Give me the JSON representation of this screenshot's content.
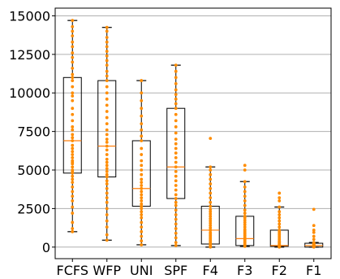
{
  "chart_data": {
    "type": "box",
    "title": "",
    "xlabel": "",
    "ylabel": "",
    "ylim": [
      -750,
      15500
    ],
    "yticks": [
      0,
      2500,
      5000,
      7500,
      10000,
      12500,
      15000
    ],
    "ytick_labels": [
      "0",
      "2500",
      "5000",
      "7500",
      "10000",
      "12500",
      "15000"
    ],
    "grid": "horizontal",
    "point_color": "#ff8c00",
    "median_color": "#ff7f0e",
    "categories": [
      "FCFS",
      "WFP",
      "UNI",
      "SPF",
      "F4",
      "F3",
      "F2",
      "F1"
    ],
    "boxes": [
      {
        "min": 1000,
        "q1": 4800,
        "median": 6900,
        "q3": 11000,
        "max": 14700,
        "points": [
          1000,
          1200,
          1600,
          2200,
          2600,
          3000,
          3300,
          3600,
          3900,
          4200,
          4400,
          4600,
          4800,
          4900,
          5000,
          5200,
          5400,
          5500,
          5600,
          5800,
          6000,
          6200,
          6400,
          6600,
          6900,
          7100,
          7300,
          7600,
          7800,
          8200,
          8600,
          9000,
          9500,
          9800,
          10000,
          10400,
          10800,
          11000,
          11200,
          11600,
          12000,
          12300,
          12600,
          13000,
          13300,
          13700,
          14000,
          14300,
          14700
        ]
      },
      {
        "min": 450,
        "q1": 4550,
        "median": 6550,
        "q3": 10800,
        "max": 14250,
        "points": [
          450,
          800,
          1300,
          1700,
          2100,
          2500,
          2900,
          3200,
          3500,
          3800,
          4100,
          4300,
          4550,
          4700,
          4900,
          5100,
          5300,
          5500,
          5700,
          6000,
          6300,
          6550,
          6800,
          7000,
          7300,
          7600,
          8000,
          8400,
          8800,
          9200,
          9600,
          10000,
          10400,
          10800,
          11100,
          11400,
          11800,
          12100,
          12400,
          12700,
          13000,
          13300,
          13600,
          14000,
          14250
        ]
      },
      {
        "min": 150,
        "q1": 2650,
        "median": 3800,
        "q3": 6900,
        "max": 10800,
        "points": [
          150,
          400,
          700,
          1000,
          1300,
          1600,
          1900,
          2100,
          2300,
          2500,
          2650,
          2800,
          3000,
          3200,
          3400,
          3600,
          3800,
          4000,
          4200,
          4400,
          4700,
          5000,
          5300,
          5600,
          6000,
          6400,
          6900,
          7200,
          7600,
          8000,
          8500,
          9000,
          9500,
          10000,
          10800
        ]
      },
      {
        "min": 100,
        "q1": 3150,
        "median": 5200,
        "q3": 9000,
        "max": 11800,
        "points": [
          100,
          300,
          600,
          900,
          1200,
          1500,
          1800,
          2100,
          2400,
          2700,
          2900,
          3150,
          3400,
          3700,
          4000,
          4300,
          4600,
          4900,
          5200,
          5500,
          5800,
          6100,
          6400,
          6700,
          7000,
          7400,
          7800,
          8200,
          8600,
          9000,
          9300,
          9600,
          9900,
          10200,
          10600,
          11000,
          11400,
          11800
        ]
      },
      {
        "min": 0,
        "q1": 200,
        "median": 1100,
        "q3": 2650,
        "max": 5200,
        "points": [
          0,
          50,
          150,
          250,
          350,
          450,
          550,
          650,
          750,
          850,
          950,
          1100,
          1250,
          1400,
          1550,
          1700,
          1850,
          2000,
          2150,
          2300,
          2450,
          2650,
          2900,
          3200,
          3500,
          3800,
          4100,
          4400,
          4700,
          5000,
          5200,
          7050
        ]
      },
      {
        "min": 50,
        "q1": 100,
        "median": 550,
        "q3": 2000,
        "max": 4250,
        "points": [
          50,
          100,
          180,
          260,
          340,
          420,
          500,
          550,
          650,
          750,
          850,
          950,
          1050,
          1150,
          1300,
          1450,
          1600,
          1750,
          1900,
          2000,
          2200,
          2400,
          2700,
          3000,
          3300,
          3600,
          3900,
          4250,
          5000,
          5300
        ]
      },
      {
        "min": 0,
        "q1": 50,
        "median": 100,
        "q3": 1100,
        "max": 2600,
        "points": [
          0,
          20,
          40,
          60,
          80,
          100,
          130,
          160,
          200,
          250,
          300,
          350,
          400,
          500,
          600,
          700,
          800,
          900,
          1000,
          1100,
          1300,
          1500,
          1700,
          1900,
          2100,
          2300,
          2600,
          3000,
          3200,
          3500
        ]
      },
      {
        "min": 0,
        "q1": 0,
        "median": 100,
        "q3": 250,
        "max": 300,
        "points": [
          0,
          10,
          20,
          30,
          40,
          50,
          60,
          70,
          80,
          90,
          100,
          120,
          140,
          160,
          180,
          200,
          230,
          250,
          280,
          300,
          500,
          700,
          950,
          1100,
          1400,
          2450
        ]
      }
    ]
  }
}
